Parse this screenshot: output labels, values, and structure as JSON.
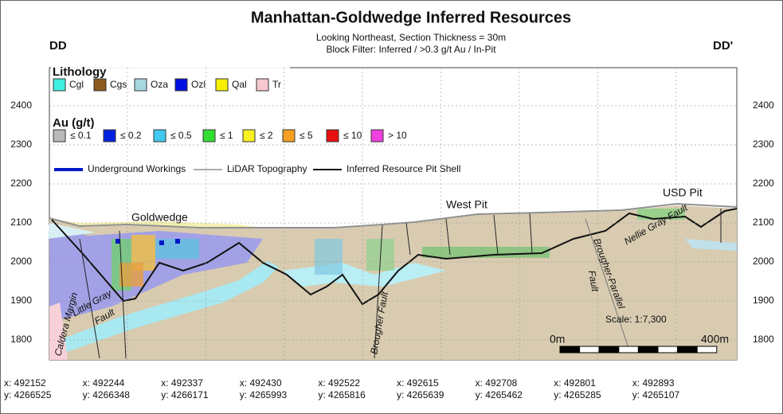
{
  "title": "Manhattan-Goldwedge Inferred Resources",
  "subtitle": [
    "Looking Northeast, Section Thickness = 30m",
    "Block Filter: Inferred / >0.3 g/t Au / In-Pit"
  ],
  "section_ends": {
    "left": "DD",
    "right": "DD'"
  },
  "lithology": {
    "title": "Lithology",
    "items": [
      {
        "label": "Cgl",
        "color": "#40f0e0"
      },
      {
        "label": "Cgs",
        "color": "#8b5a1e"
      },
      {
        "label": "Oza",
        "color": "#a8d8e0"
      },
      {
        "label": "Ozl",
        "color": "#0010e0"
      },
      {
        "label": "Qal",
        "color": "#f8f000"
      },
      {
        "label": "Tr",
        "color": "#f8c8d0"
      }
    ]
  },
  "grade": {
    "title": "Au (g/t)",
    "items": [
      {
        "label": "≤ 0.1",
        "color": "#b8b8b8"
      },
      {
        "label": "≤ 0.2",
        "color": "#0020e0"
      },
      {
        "label": "≤ 0.5",
        "color": "#40c8f0"
      },
      {
        "label": "≤ 1",
        "color": "#30e030"
      },
      {
        "label": "≤ 2",
        "color": "#f8f020"
      },
      {
        "label": "≤ 5",
        "color": "#f8a020"
      },
      {
        "label": "≤ 10",
        "color": "#e81010"
      },
      {
        "label": "> 10",
        "color": "#f040e0"
      }
    ]
  },
  "lines": [
    {
      "label": "Underground Workings",
      "color": "#0018c8"
    },
    {
      "label": "LiDAR Topography",
      "color": "#909090"
    },
    {
      "label": "Inferred Resource Pit Shell",
      "color": "#111111"
    }
  ],
  "elevation_ticks": [
    1800,
    1900,
    2000,
    2100,
    2200,
    2300,
    2400
  ],
  "annotations": {
    "goldwedge": "Goldwedge",
    "west_pit": "West Pit",
    "usd_pit": "USD Pit",
    "little_gray": "Little Gray",
    "little_gray_2": "Fault",
    "caldera": "Caldera Margin",
    "brougher": "Brougher Fault",
    "brougher_parallel": "Brougher-Parallel",
    "brougher_parallel_2": "Fault",
    "nellie_gray": "Nellie Gray Fault"
  },
  "scale_bar": {
    "ratio": "Scale: 1:7,300",
    "start": "0m",
    "end": "400m"
  },
  "coordinates": [
    {
      "x": "x: 492152",
      "y": "y: 4266525"
    },
    {
      "x": "x: 492244",
      "y": "y: 4266348"
    },
    {
      "x": "x: 492337",
      "y": "y: 4266171"
    },
    {
      "x": "x: 492430",
      "y": "y: 4265993"
    },
    {
      "x": "x: 492522",
      "y": "y: 4265816"
    },
    {
      "x": "x: 492615",
      "y": "y: 4265639"
    },
    {
      "x": "x: 492708",
      "y": "y: 4265462"
    },
    {
      "x": "x: 492801",
      "y": "y: 4265285"
    },
    {
      "x": "x: 492893",
      "y": "y: 4265107"
    }
  ]
}
